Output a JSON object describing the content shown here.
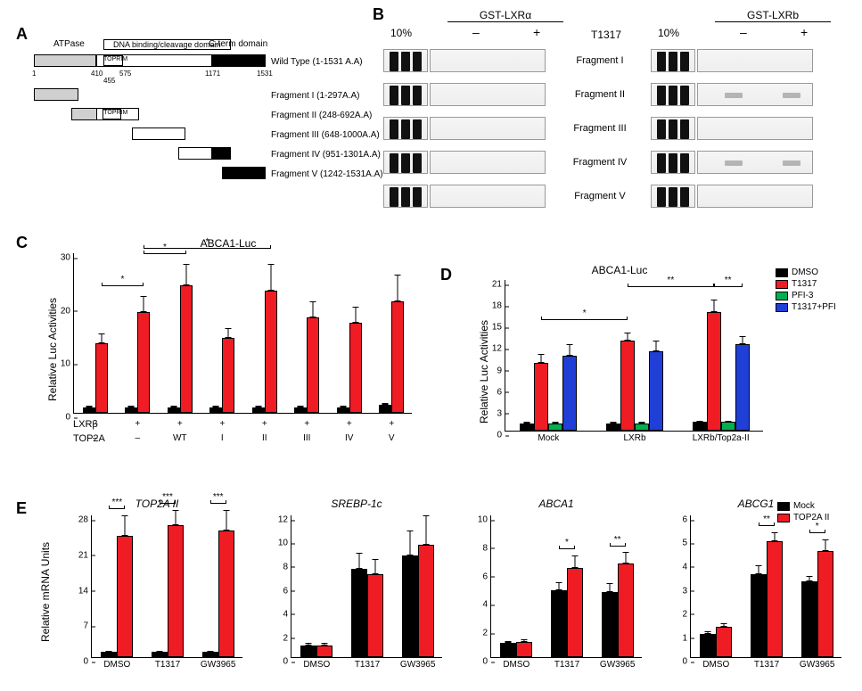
{
  "labels": {
    "A": "A",
    "B": "B",
    "C": "C",
    "D": "D",
    "E": "E"
  },
  "panelA": {
    "header": {
      "atpase": "ATPase",
      "dbd": "DNA binding/cleavage domain",
      "cterm": "C-term domain",
      "toprim": "TOPRIM"
    },
    "ticks": {
      "t1": "1",
      "t410": "410",
      "t455": "455",
      "t575": "575",
      "t1171": "1171",
      "t1531": "1531"
    },
    "rows": {
      "wt": "Wild Type (1-1531 A.A)",
      "f1": "Fragment I  (1-297A.A)",
      "f2": "Fragment II  (248-692A.A)",
      "f3": "Fragment III  (648-1000A.A)",
      "f4": "Fragment IV  (951-1301A.A)",
      "f5": "Fragment V  (1242-1531A.A)"
    },
    "colors": {
      "atpase": "#d0d0d0",
      "dbd": "#ffffff",
      "cterm": "#000000",
      "toprim": "#ffffff"
    }
  },
  "panelB": {
    "gstA": "GST-LXRα",
    "gstB": "GST-LXRb",
    "ligand": "T1317",
    "tenPct": "10%",
    "signs": {
      "minus": "–",
      "plus": "+"
    },
    "frags": {
      "f1": "Fragment I",
      "f2": "Fragment II",
      "f3": "Fragment III",
      "f4": "Fragment IV",
      "f5": "Fragment V"
    }
  },
  "legendCD": {
    "dmso": "DMSO",
    "t1317": "T1317",
    "pfi": "PFI-3",
    "tpfi": "T1317+PFI"
  },
  "colors": {
    "dmso": "#000000",
    "t1317": "#ef1c24",
    "pfi": "#00b050",
    "tpfi": "#1f3fd6",
    "mock": "#000000",
    "top2a": "#ef1c24"
  },
  "panelC": {
    "title": "ABCA1-Luc",
    "ylabel": "Relative Luc Activities",
    "ymax": 30,
    "ytick": 10,
    "row1": "LXRβ",
    "row2": "TOP2A",
    "groups": [
      {
        "r1": "–",
        "r2": "–",
        "dmso": 1,
        "dmso_e": 0.3,
        "t": 13,
        "t_e": 2
      },
      {
        "r1": "+",
        "r2": "–",
        "dmso": 1,
        "dmso_e": 0.3,
        "t": 19,
        "t_e": 3
      },
      {
        "r1": "+",
        "r2": "WT",
        "dmso": 1,
        "dmso_e": 0.3,
        "t": 24,
        "t_e": 4
      },
      {
        "r1": "+",
        "r2": "I",
        "dmso": 1,
        "dmso_e": 0.3,
        "t": 14,
        "t_e": 2
      },
      {
        "r1": "+",
        "r2": "II",
        "dmso": 1,
        "dmso_e": 0.3,
        "t": 23,
        "t_e": 5
      },
      {
        "r1": "+",
        "r2": "III",
        "dmso": 1,
        "dmso_e": 0.3,
        "t": 18,
        "t_e": 3
      },
      {
        "r1": "+",
        "r2": "IV",
        "dmso": 1,
        "dmso_e": 0.3,
        "t": 17,
        "t_e": 3
      },
      {
        "r1": "+",
        "r2": "V",
        "dmso": 1.5,
        "dmso_e": 0.3,
        "t": 21,
        "t_e": 5
      }
    ],
    "sig": [
      {
        "from": 0,
        "to": 1,
        "y": 23,
        "label": "*"
      },
      {
        "from": 1,
        "to": 2,
        "y": 29,
        "label": "*"
      },
      {
        "from": 1,
        "to": 4,
        "y": 32,
        "label": "*"
      }
    ]
  },
  "panelD": {
    "title": "ABCA1-Luc",
    "ylabel": "Relative Luc Activities",
    "ymax": 21,
    "ytick": 3,
    "groups": [
      {
        "x": "Mock",
        "dmso": 1,
        "dmso_e": 0.2,
        "t": 9.5,
        "t_e": 1.2,
        "p": 1,
        "p_e": 0.2,
        "tp": 10.5,
        "tp_e": 1.5
      },
      {
        "x": "LXRb",
        "dmso": 1,
        "dmso_e": 0.2,
        "t": 12.5,
        "t_e": 1.2,
        "p": 1,
        "p_e": 0.2,
        "tp": 11,
        "tp_e": 1.5
      },
      {
        "x": "LXRb/Top2a-II",
        "dmso": 1.2,
        "dmso_e": 0.2,
        "t": 16.5,
        "t_e": 1.8,
        "p": 1.2,
        "p_e": 0.2,
        "tp": 12,
        "tp_e": 1.2
      }
    ],
    "sig": [
      {
        "from": 0,
        "to": 1,
        "y": 15,
        "label": "*",
        "series": "t"
      },
      {
        "from": 1,
        "to": 2,
        "y": 19.5,
        "label": "**",
        "series": "t"
      },
      {
        "from": 2,
        "to": 2,
        "y": 19.5,
        "label": "**",
        "series": "tp",
        "pairSelf": true
      }
    ]
  },
  "panelE": {
    "ylabel": "Relative mRNA Units",
    "xcats": [
      "DMSO",
      "T1317",
      "GW3965"
    ],
    "legend": {
      "mock": "Mock",
      "top2a": "TOP2A II"
    },
    "charts": [
      {
        "title": "TOP2A II",
        "ymax": 28,
        "ytick": 7,
        "data": [
          {
            "m": 1,
            "m_e": 0.3,
            "t": 24,
            "t_e": 4,
            "sig": "***"
          },
          {
            "m": 1,
            "m_e": 0.3,
            "t": 26,
            "t_e": 3,
            "sig": "***"
          },
          {
            "m": 1,
            "m_e": 0.3,
            "t": 25,
            "t_e": 4,
            "sig": "***"
          }
        ]
      },
      {
        "title": "SREBP-1c",
        "ymax": 12,
        "ytick": 2,
        "data": [
          {
            "m": 1,
            "m_e": 0.2,
            "t": 1,
            "t_e": 0.2,
            "sig": ""
          },
          {
            "m": 7.5,
            "m_e": 1.3,
            "t": 7,
            "t_e": 1.3,
            "sig": ""
          },
          {
            "m": 8.6,
            "m_e": 2.1,
            "t": 9.5,
            "t_e": 2.5,
            "sig": ""
          }
        ]
      },
      {
        "title": "ABCA1",
        "ymax": 10,
        "ytick": 2,
        "data": [
          {
            "m": 1,
            "m_e": 0.15,
            "t": 1.1,
            "t_e": 0.15,
            "sig": ""
          },
          {
            "m": 4.7,
            "m_e": 0.6,
            "t": 6.3,
            "t_e": 0.9,
            "sig": "*"
          },
          {
            "m": 4.6,
            "m_e": 0.6,
            "t": 6.6,
            "t_e": 0.8,
            "sig": "**"
          }
        ]
      },
      {
        "title": "ABCG1",
        "ymax": 6,
        "ytick": 1,
        "data": [
          {
            "m": 1,
            "m_e": 0.1,
            "t": 1.3,
            "t_e": 0.15,
            "sig": ""
          },
          {
            "m": 3.5,
            "m_e": 0.4,
            "t": 4.9,
            "t_e": 0.4,
            "sig": "**"
          },
          {
            "m": 3.2,
            "m_e": 0.25,
            "t": 4.5,
            "t_e": 0.5,
            "sig": "*"
          }
        ]
      }
    ]
  }
}
